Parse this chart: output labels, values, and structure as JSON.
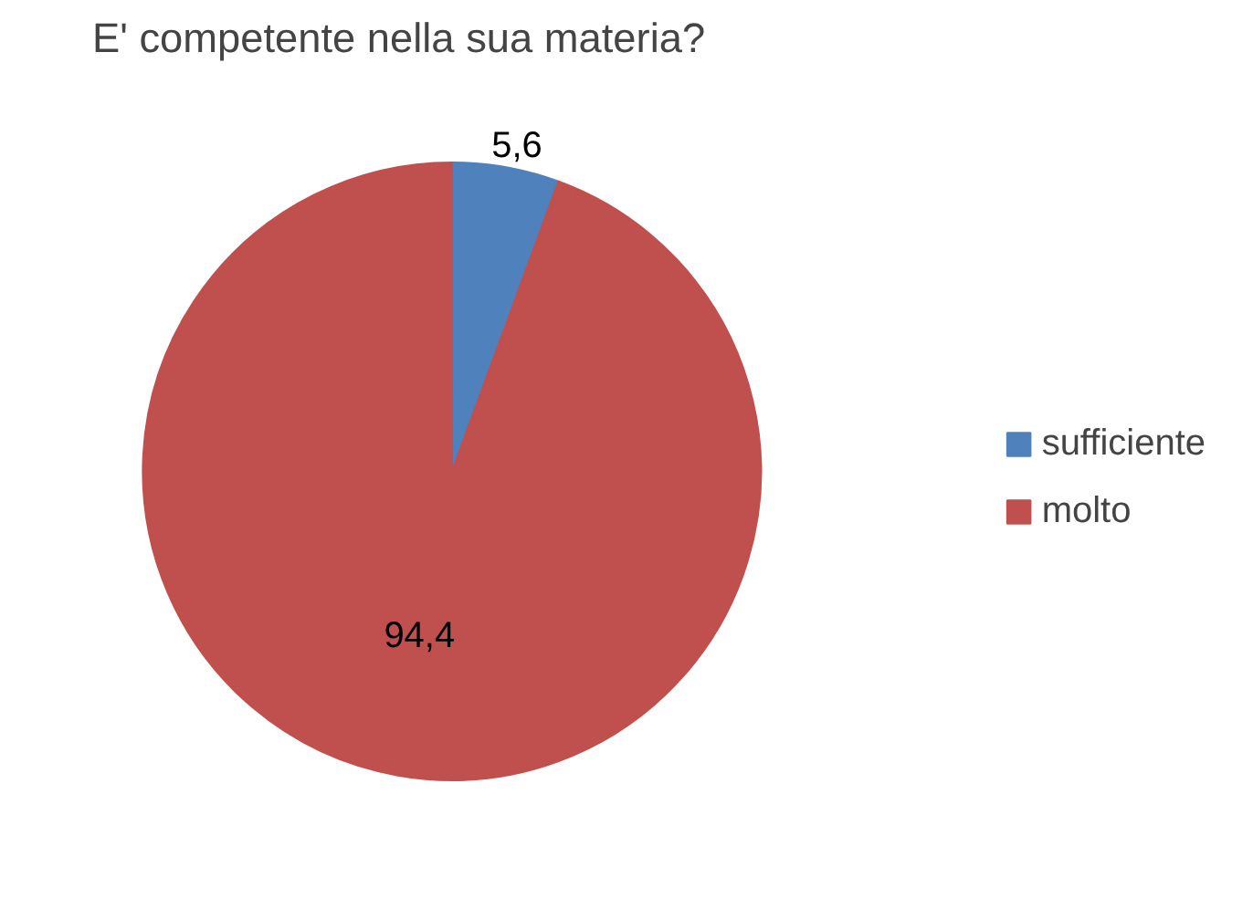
{
  "chart_data": {
    "type": "pie",
    "title": "E' competente nella sua materia?",
    "categories": [
      "sufficiente",
      "molto"
    ],
    "values": [
      5.6,
      94.4
    ],
    "colors": [
      "#4f81bd",
      "#c0504d"
    ],
    "value_labels": [
      "5,6",
      "94,4"
    ],
    "legend": "right"
  }
}
